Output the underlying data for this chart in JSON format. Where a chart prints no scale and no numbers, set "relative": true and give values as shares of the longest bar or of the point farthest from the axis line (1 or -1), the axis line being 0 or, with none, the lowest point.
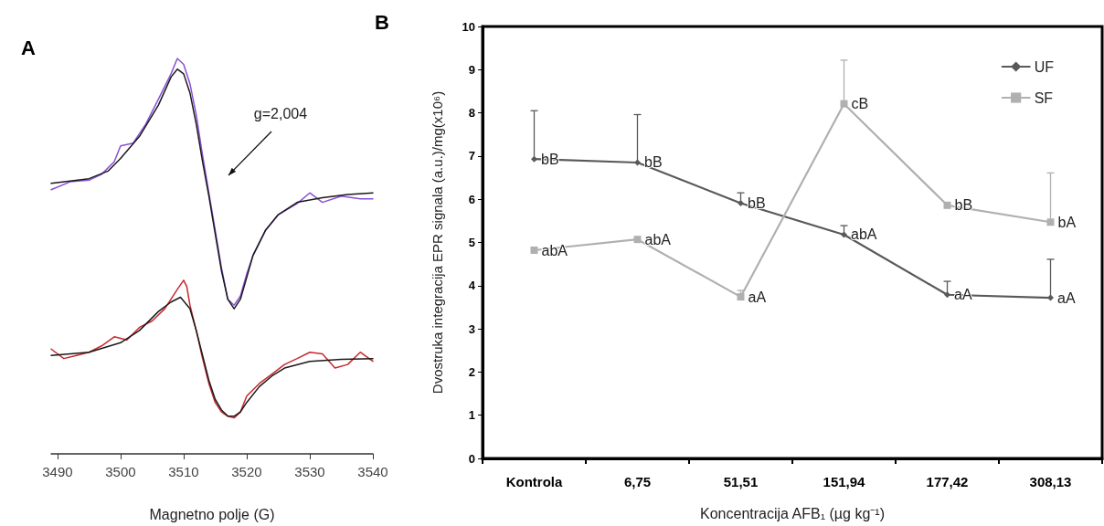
{
  "chart_data": [
    {
      "type": "line",
      "title": "A",
      "xlabel": "Magnetno polje (G)",
      "relative": true,
      "tick_labels": "x",
      "marker": "none",
      "grid": false,
      "legend": false,
      "xlim": [
        3489,
        3540
      ],
      "xticks": [
        3490,
        3500,
        3510,
        3520,
        3530,
        3540
      ],
      "annotations": [
        "g=2,004"
      ],
      "series": [
        {
          "color": "#8a4fd8",
          "x": [
            3489,
            3492,
            3495,
            3497,
            3499,
            3500,
            3502,
            3504,
            3506,
            3508,
            3509,
            3510,
            3511,
            3512,
            3513,
            3514,
            3515,
            3516,
            3517,
            3518,
            3519,
            3520,
            3521,
            3523,
            3525,
            3528,
            3530,
            3532,
            3535,
            3538,
            3540
          ],
          "values": [
            0.668,
            0.688,
            0.692,
            0.707,
            0.739,
            0.779,
            0.786,
            0.834,
            0.897,
            0.961,
            1.0,
            0.985,
            0.936,
            0.857,
            0.755,
            0.66,
            0.566,
            0.47,
            0.391,
            0.376,
            0.399,
            0.455,
            0.502,
            0.566,
            0.605,
            0.633,
            0.66,
            0.636,
            0.652,
            0.645,
            0.645
          ]
        },
        {
          "color": "#1a1a1a",
          "x": [
            3489,
            3495,
            3498,
            3500,
            3503,
            3506,
            3508,
            3509,
            3510,
            3511,
            3512,
            3513,
            3514,
            3515,
            3516,
            3517,
            3518,
            3519,
            3520,
            3521,
            3523,
            3525,
            3528,
            3532,
            3536,
            3540
          ],
          "values": [
            0.684,
            0.696,
            0.715,
            0.747,
            0.803,
            0.882,
            0.953,
            0.973,
            0.961,
            0.913,
            0.834,
            0.739,
            0.652,
            0.557,
            0.463,
            0.391,
            0.367,
            0.391,
            0.446,
            0.502,
            0.566,
            0.605,
            0.636,
            0.648,
            0.656,
            0.66
          ]
        },
        {
          "color": "#c8282d",
          "x": [
            3489,
            3491,
            3493,
            3495,
            3497,
            3499,
            3501,
            3503,
            3505,
            3507,
            3509,
            3510,
            3510.5,
            3511,
            3512,
            3513,
            3514,
            3515,
            3516,
            3517,
            3518,
            3519,
            3520,
            3522,
            3524,
            3526,
            3528,
            3530,
            3532,
            3534,
            3536,
            3538,
            3540
          ],
          "values": [
            0.265,
            0.241,
            0.249,
            0.257,
            0.273,
            0.296,
            0.288,
            0.32,
            0.336,
            0.367,
            0.416,
            0.439,
            0.423,
            0.376,
            0.312,
            0.241,
            0.178,
            0.13,
            0.106,
            0.095,
            0.091,
            0.106,
            0.146,
            0.178,
            0.202,
            0.226,
            0.241,
            0.257,
            0.253,
            0.217,
            0.226,
            0.257,
            0.234
          ]
        },
        {
          "color": "#1a1a1a",
          "x": [
            3489,
            3495,
            3500,
            3503,
            3506,
            3508,
            3509.5,
            3511,
            3512,
            3513,
            3514,
            3515,
            3516,
            3517,
            3518,
            3519,
            3520,
            3522,
            3524,
            3526,
            3530,
            3535,
            3540
          ],
          "values": [
            0.249,
            0.257,
            0.281,
            0.312,
            0.36,
            0.384,
            0.396,
            0.367,
            0.312,
            0.249,
            0.186,
            0.138,
            0.111,
            0.096,
            0.095,
            0.106,
            0.13,
            0.17,
            0.197,
            0.217,
            0.234,
            0.239,
            0.241
          ]
        }
      ]
    },
    {
      "type": "line",
      "title": "B",
      "xlabel": "Koncentracija AFB₁ (µg kg⁻¹)",
      "ylabel": "Dvostruka integracija EPR signala (a.u.)/mg(x10⁶)",
      "grid": false,
      "legend": "top right",
      "categories": [
        "Kontrola",
        "6,75",
        "51,51",
        "151,94",
        "177,42",
        "308,13"
      ],
      "ylim": [
        0,
        10
      ],
      "yticks": [
        0,
        1,
        2,
        3,
        4,
        5,
        6,
        7,
        8,
        9,
        10
      ],
      "series": [
        {
          "name": "UF",
          "color": "#595959",
          "marker": "diamond",
          "values": [
            6.93,
            6.85,
            5.91,
            5.18,
            3.79,
            3.72
          ],
          "errors": [
            [
              6.93,
              8.05
            ],
            [
              6.85,
              7.96
            ],
            [
              5.91,
              6.15
            ],
            [
              5.18,
              5.39
            ],
            [
              3.79,
              4.1
            ],
            [
              3.72,
              4.61
            ]
          ],
          "value_labels": [
            "bB",
            "bB",
            "bB",
            "abA",
            "aA",
            "aA"
          ]
        },
        {
          "name": "SF",
          "color": "#b0b0b0",
          "marker": "square",
          "values": [
            4.82,
            5.07,
            3.74,
            8.21,
            5.86,
            5.47
          ],
          "errors": [
            null,
            null,
            [
              3.74,
              3.89
            ],
            [
              8.21,
              9.22
            ],
            null,
            [
              5.47,
              6.61
            ]
          ],
          "value_labels": [
            "abA",
            "abA",
            "aA",
            "cB",
            "bB",
            "bA"
          ]
        }
      ]
    }
  ]
}
